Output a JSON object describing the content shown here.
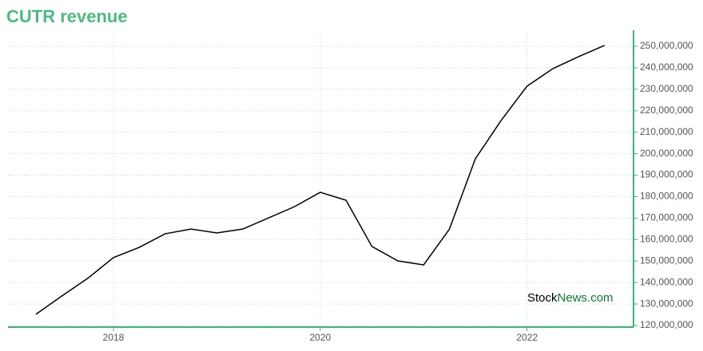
{
  "chart_data": {
    "type": "line",
    "title": "CUTR revenue",
    "watermark": {
      "part1": "Stock",
      "part2": "News.com"
    },
    "x": [
      2017.25,
      2017.5,
      2017.75,
      2018,
      2018.25,
      2018.5,
      2018.75,
      2019,
      2019.25,
      2019.5,
      2019.75,
      2020,
      2020.25,
      2020.5,
      2020.75,
      2021,
      2021.25,
      2021.5,
      2021.75,
      2022,
      2022.25,
      2022.5,
      2022.75
    ],
    "series": [
      {
        "name": "revenue",
        "color": "#000000",
        "values": [
          125200000,
          133700000,
          141900000,
          151600000,
          156400000,
          162700000,
          164900000,
          163100000,
          164900000,
          170100000,
          175300000,
          182000000,
          178300000,
          156800000,
          150100000,
          148200000,
          164900000,
          197600000,
          215500000,
          231400000,
          239600000,
          245200000,
          250400000
        ]
      }
    ],
    "xlim": [
      2016.98,
      2023.03
    ],
    "xticks": [
      2018,
      2020,
      2022
    ],
    "ylim": [
      120000000,
      256700000
    ],
    "yticks": [
      {
        "value": 120000000,
        "label": "120,000,000"
      },
      {
        "value": 130000000,
        "label": "130,000,000"
      },
      {
        "value": 140000000,
        "label": "140,000,000"
      },
      {
        "value": 150000000,
        "label": "150,000,000"
      },
      {
        "value": 160000000,
        "label": "160,000,000"
      },
      {
        "value": 170000000,
        "label": "170,000,000"
      },
      {
        "value": 180000000,
        "label": "180,000,000"
      },
      {
        "value": 190000000,
        "label": "190,000,000"
      },
      {
        "value": 200000000,
        "label": "200,000,000"
      },
      {
        "value": 210000000,
        "label": "210,000,000"
      },
      {
        "value": 220000000,
        "label": "220,000,000"
      },
      {
        "value": 230000000,
        "label": "230,000,000"
      },
      {
        "value": 240000000,
        "label": "240,000,000"
      },
      {
        "value": 250000000,
        "label": "250,000,000"
      }
    ],
    "grid": true,
    "axis_color": "#3cb371",
    "title_color": "#4cbb7f"
  }
}
